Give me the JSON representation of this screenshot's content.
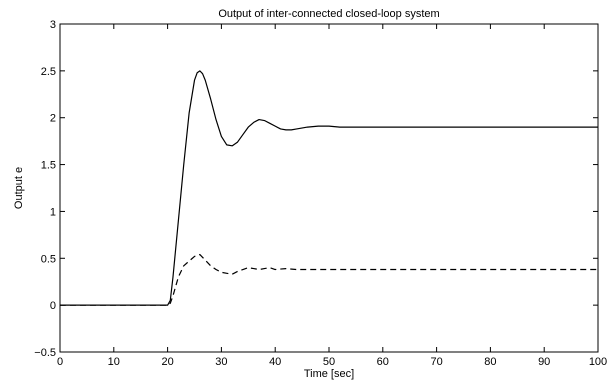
{
  "chart_data": {
    "type": "line",
    "title": "Output of inter-connected closed-loop system",
    "xlabel": "Time [sec]",
    "ylabel": "Output e",
    "xlim": [
      0,
      100
    ],
    "ylim": [
      -0.5,
      3
    ],
    "xticks": [
      0,
      10,
      20,
      30,
      40,
      50,
      60,
      70,
      80,
      90,
      100
    ],
    "yticks": [
      -0.5,
      0,
      0.5,
      1,
      1.5,
      2,
      2.5,
      3
    ],
    "grid": false,
    "series": [
      {
        "style": "solid",
        "color": "#000000",
        "x": [
          0,
          20,
          20.5,
          21,
          22,
          23,
          24,
          25,
          25.5,
          26,
          26.5,
          27,
          28,
          29,
          30,
          31,
          32,
          33,
          34,
          35,
          36,
          37,
          38,
          39,
          40,
          41,
          42,
          43,
          44,
          46,
          48,
          50,
          52,
          55,
          60,
          70,
          80,
          90,
          100
        ],
        "y": [
          0,
          0,
          0.05,
          0.3,
          0.9,
          1.5,
          2.05,
          2.4,
          2.48,
          2.5,
          2.47,
          2.4,
          2.2,
          1.98,
          1.8,
          1.71,
          1.7,
          1.74,
          1.82,
          1.9,
          1.95,
          1.98,
          1.97,
          1.94,
          1.91,
          1.88,
          1.87,
          1.87,
          1.88,
          1.9,
          1.91,
          1.91,
          1.9,
          1.9,
          1.9,
          1.9,
          1.9,
          1.9,
          1.9
        ]
      },
      {
        "style": "dashed",
        "color": "#000000",
        "x": [
          0,
          20,
          20.5,
          21,
          22,
          23,
          24,
          25,
          26,
          27,
          28,
          29,
          30,
          31,
          32,
          33,
          34,
          35,
          36,
          37,
          38,
          39,
          40,
          42,
          44,
          46,
          48,
          50,
          55,
          60,
          70,
          80,
          90,
          100
        ],
        "y": [
          0,
          0,
          0.02,
          0.1,
          0.3,
          0.42,
          0.47,
          0.52,
          0.54,
          0.48,
          0.42,
          0.38,
          0.35,
          0.34,
          0.33,
          0.36,
          0.38,
          0.4,
          0.39,
          0.38,
          0.39,
          0.4,
          0.38,
          0.39,
          0.38,
          0.38,
          0.38,
          0.38,
          0.38,
          0.38,
          0.38,
          0.38,
          0.38,
          0.38
        ]
      }
    ]
  }
}
